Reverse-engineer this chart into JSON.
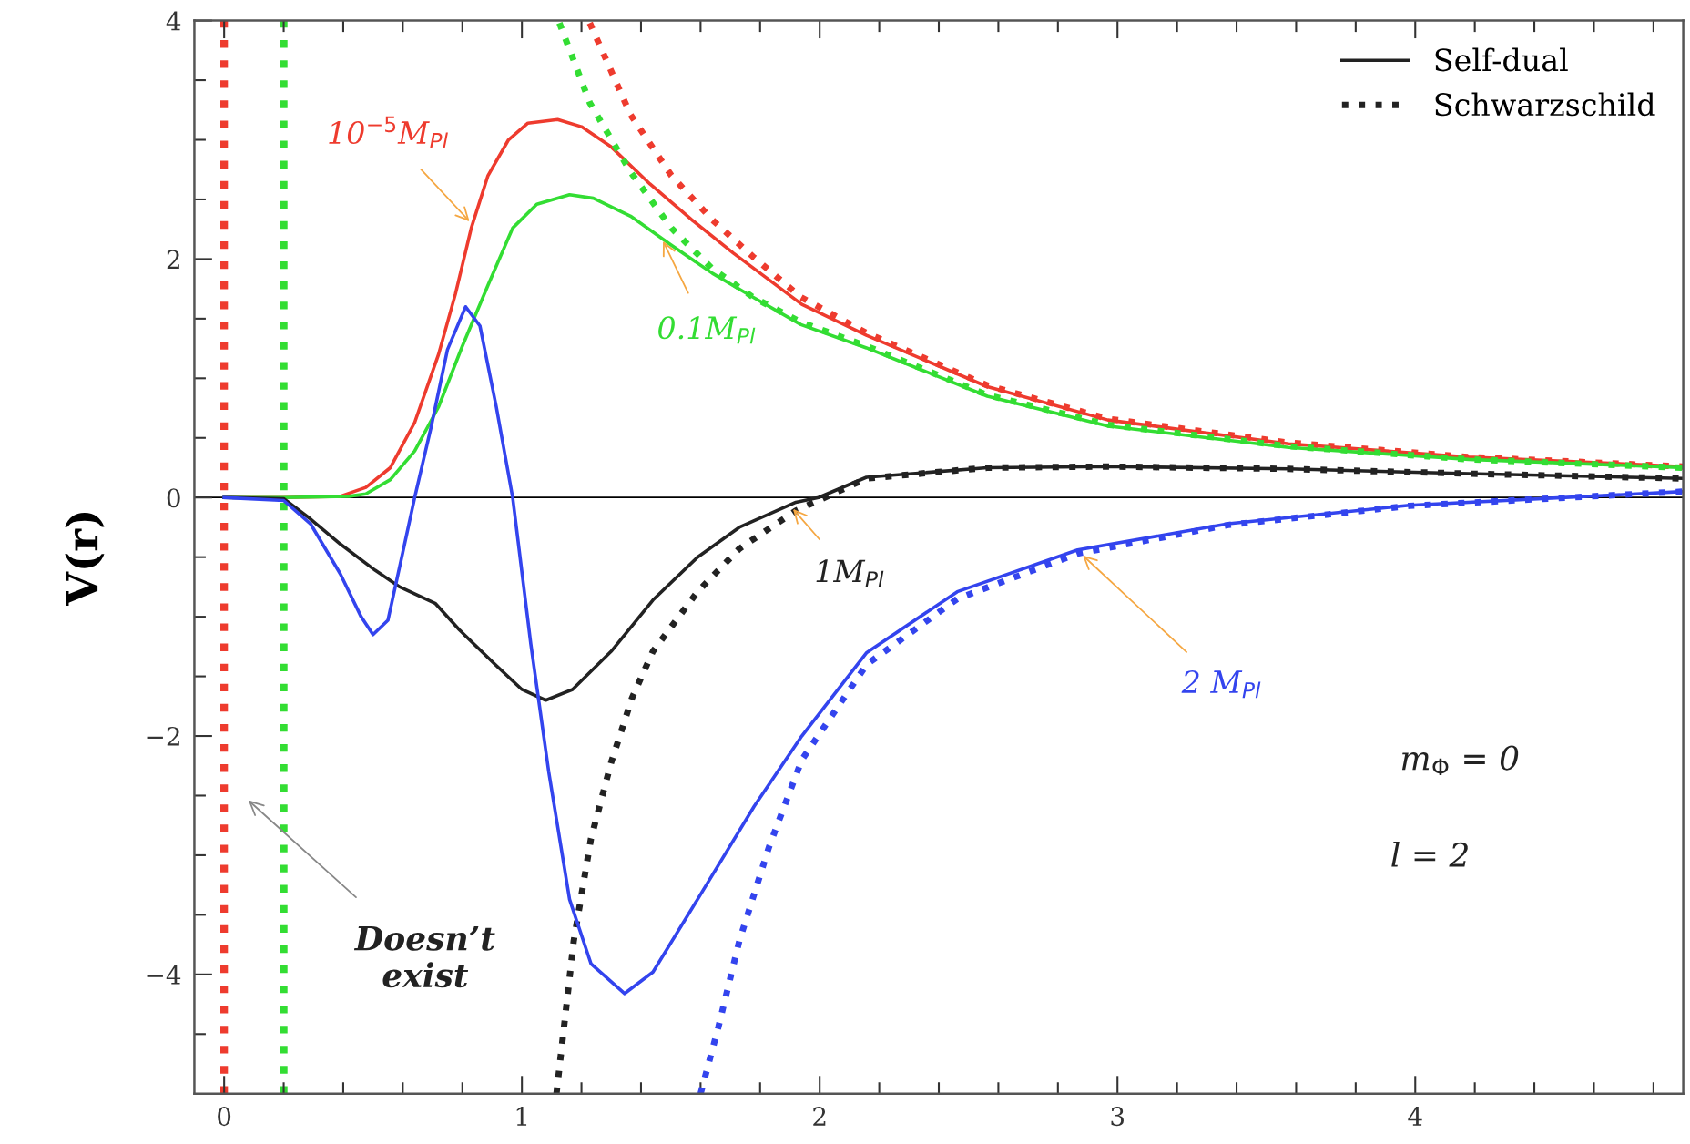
{
  "chart_data": {
    "type": "line",
    "ylabel": "V(r)",
    "xlim": [
      -0.1,
      4.9
    ],
    "ylim": [
      -5,
      4
    ],
    "xticks": [
      0,
      {
        "value": 0.2,
        "label": null
      },
      {
        "value": 0.4,
        "label": null
      },
      {
        "value": 0.6,
        "label": null
      },
      {
        "value": 0.8,
        "label": null
      },
      1,
      {
        "value": 1.2,
        "label": null
      },
      {
        "value": 1.4,
        "label": null
      },
      {
        "value": 1.6,
        "label": null
      },
      {
        "value": 1.8,
        "label": null
      },
      2,
      {
        "value": 2.2,
        "label": null
      },
      {
        "value": 2.4,
        "label": null
      },
      {
        "value": 2.6,
        "label": null
      },
      {
        "value": 2.8,
        "label": null
      },
      3,
      {
        "value": 3.2,
        "label": null
      },
      {
        "value": 3.4,
        "label": null
      },
      {
        "value": 3.6,
        "label": null
      },
      {
        "value": 3.8,
        "label": null
      },
      4,
      {
        "value": 4.2,
        "label": null
      },
      {
        "value": 4.4,
        "label": null
      },
      {
        "value": 4.6,
        "label": null
      },
      {
        "value": 4.8,
        "label": null
      }
    ],
    "yticks": [
      {
        "value": -4,
        "label": "−4"
      },
      {
        "value": -4.5,
        "label": null
      },
      {
        "value": -3.5,
        "label": null
      },
      {
        "value": -3,
        "label": null
      },
      {
        "value": -2.5,
        "label": null
      },
      {
        "value": -2,
        "label": "−2"
      },
      {
        "value": -1.5,
        "label": null
      },
      {
        "value": -1,
        "label": null
      },
      {
        "value": -0.5,
        "label": null
      },
      0,
      {
        "value": 0.5,
        "label": null
      },
      {
        "value": 1,
        "label": null
      },
      {
        "value": 1.5,
        "label": null
      },
      2,
      {
        "value": 2.5,
        "label": null
      },
      {
        "value": 3,
        "label": null
      },
      {
        "value": 3.5,
        "label": null
      },
      4
    ],
    "grid": false,
    "legend": "top right",
    "marker": "none",
    "series": [
      {
        "color": "#ee3b2e",
        "line_style": "solid",
        "x": [
          0,
          0.2,
          0.39,
          0.476,
          0.558,
          0.64,
          0.72,
          0.777,
          0.83,
          0.886,
          0.955,
          1.02,
          1.12,
          1.2,
          1.3,
          1.43,
          1.57,
          1.71,
          1.94,
          2.157,
          2.563,
          2.968,
          3.575,
          4.18,
          4.9
        ],
        "values": [
          0,
          0,
          0.01,
          0.085,
          0.25,
          0.63,
          1.2,
          1.71,
          2.26,
          2.7,
          3.0,
          3.14,
          3.17,
          3.11,
          2.94,
          2.63,
          2.33,
          2.05,
          1.62,
          1.36,
          0.93,
          0.65,
          0.45,
          0.34,
          0.26
        ]
      },
      {
        "color": "#ee3b2e",
        "line_style": "dotted",
        "x": [
          1.228,
          1.365,
          1.502,
          1.639,
          1.776,
          1.937,
          2.157,
          2.563,
          2.968,
          3.575,
          4.18,
          4.9
        ],
        "values": [
          3.98,
          3.21,
          2.7,
          2.33,
          2.02,
          1.68,
          1.38,
          0.94,
          0.66,
          0.46,
          0.34,
          0.26
        ]
      },
      {
        "color": "#33dd33",
        "line_style": "solid",
        "x": [
          0,
          0.2,
          0.42,
          0.476,
          0.558,
          0.64,
          0.72,
          0.8,
          0.886,
          0.969,
          1.05,
          1.16,
          1.24,
          1.365,
          1.5,
          1.64,
          1.776,
          1.937,
          2.157,
          2.563,
          2.968,
          3.575,
          4.18,
          4.9
        ],
        "values": [
          0,
          0,
          0.01,
          0.03,
          0.15,
          0.39,
          0.76,
          1.27,
          1.78,
          2.26,
          2.46,
          2.54,
          2.51,
          2.36,
          2.12,
          1.88,
          1.68,
          1.45,
          1.255,
          0.85,
          0.6,
          0.42,
          0.32,
          0.25
        ]
      },
      {
        "color": "#33dd33",
        "line_style": "dotted",
        "x": [
          1.126,
          1.228,
          1.365,
          1.502,
          1.639,
          1.776,
          1.937,
          2.157,
          2.563,
          2.968,
          3.575,
          4.18,
          4.9
        ],
        "values": [
          3.98,
          3.31,
          2.73,
          2.26,
          1.92,
          1.68,
          1.47,
          1.27,
          0.86,
          0.61,
          0.43,
          0.32,
          0.25
        ]
      },
      {
        "name": "Self-dual",
        "color": "#222222",
        "line_style": "solid",
        "x": [
          0,
          0.2,
          0.29,
          0.39,
          0.507,
          0.59,
          0.71,
          0.79,
          0.91,
          1.0,
          1.08,
          1.17,
          1.3,
          1.44,
          1.59,
          1.73,
          1.92,
          1.996,
          2.157,
          2.563,
          2.968,
          3.575,
          4.18,
          4.9
        ],
        "values": [
          0,
          -0.01,
          -0.18,
          -0.39,
          -0.61,
          -0.75,
          -0.89,
          -1.11,
          -1.4,
          -1.61,
          -1.7,
          -1.61,
          -1.29,
          -0.86,
          -0.5,
          -0.25,
          -0.04,
          0,
          0.17,
          0.25,
          0.26,
          0.24,
          0.2,
          0.16
        ]
      },
      {
        "name": "Schwarzschild",
        "color": "#222222",
        "line_style": "dotted",
        "x": [
          1.116,
          1.174,
          1.232,
          1.3,
          1.37,
          1.44,
          1.59,
          1.73,
          1.92,
          2.0,
          2.157,
          2.563,
          2.968,
          3.575,
          4.18,
          4.9
        ],
        "values": [
          -5,
          -3.72,
          -2.86,
          -2.22,
          -1.68,
          -1.29,
          -0.79,
          -0.43,
          -0.11,
          -0.02,
          0.16,
          0.25,
          0.26,
          0.24,
          0.2,
          0.16
        ]
      },
      {
        "color": "#3344ee",
        "line_style": "solid",
        "x": [
          0,
          0.2,
          0.29,
          0.39,
          0.46,
          0.5,
          0.55,
          0.6,
          0.64,
          0.695,
          0.75,
          0.811,
          0.859,
          0.914,
          0.969,
          1.03,
          1.09,
          1.16,
          1.232,
          1.345,
          1.44,
          1.59,
          1.78,
          1.94,
          2.158,
          2.462,
          2.866,
          3.372,
          3.98,
          4.9
        ],
        "values": [
          0,
          -0.025,
          -0.22,
          -0.64,
          -1.0,
          -1.15,
          -1.03,
          -0.46,
          0,
          0.59,
          1.24,
          1.6,
          1.44,
          0.76,
          0,
          -1.23,
          -2.3,
          -3.37,
          -3.91,
          -4.16,
          -3.98,
          -3.37,
          -2.59,
          -2.0,
          -1.3,
          -0.79,
          -0.44,
          -0.22,
          -0.065,
          0.05
        ]
      },
      {
        "color": "#3344ee",
        "line_style": "dotted",
        "x": [
          1.6,
          1.66,
          1.73,
          1.83,
          1.94,
          2.158,
          2.462,
          2.866,
          3.372,
          3.98,
          4.9
        ],
        "values": [
          -5,
          -4.44,
          -3.72,
          -2.93,
          -2.2,
          -1.4,
          -0.85,
          -0.47,
          -0.23,
          -0.07,
          0.05
        ]
      }
    ],
    "ref_lines": [
      {
        "axis": "x",
        "value": 0,
        "color": "#ee3b2e",
        "line_style": "dotted"
      },
      {
        "axis": "x",
        "value": 0.2,
        "color": "#33dd33",
        "line_style": "dotted"
      },
      {
        "axis": "y",
        "value": 0,
        "color": "#000000",
        "line_style": "solid"
      }
    ],
    "annotations": [
      {
        "text": "10$^{−5}$M$_{Pl}$",
        "x": 0.83,
        "y": 2.3
      },
      {
        "text": "0.1M$_{Pl}$",
        "x": 1.47,
        "y": 2.17
      },
      {
        "text": "1M$_{Pl}$",
        "x": 1.905,
        "y": -0.08
      },
      {
        "text": "2 M$_{Pl}$",
        "x": 2.877,
        "y": -0.47
      },
      "Doesn’t\nexist",
      "m$_{Φ}$ = 0",
      "l = 2"
    ]
  }
}
